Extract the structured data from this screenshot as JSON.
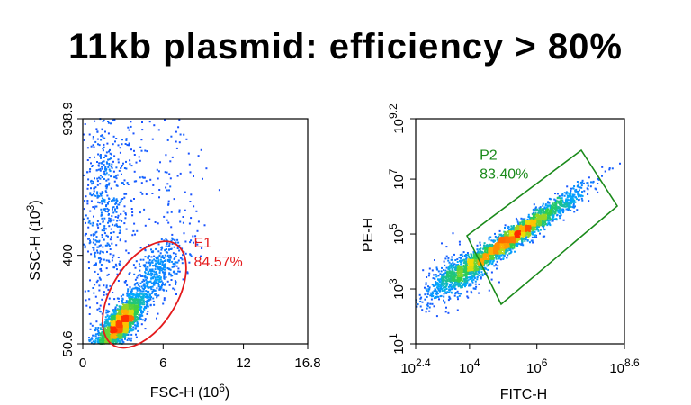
{
  "title": "11kb plasmid: efficiency > 80%",
  "colors": {
    "gate_left": "#e41a1c",
    "gate_right": "#1a8a1a",
    "density_low": "#1f3cff",
    "density_mid": "#2ecf4a",
    "density_high": "#ff2a00"
  },
  "chart_data": [
    {
      "type": "scatter",
      "subtype": "density",
      "xlabel": "FSC-H (10^6)",
      "xlabel_main": "FSC-H",
      "xlabel_unit_base": "(10",
      "xlabel_unit_exp": "6",
      "xlabel_unit_close": ")",
      "ylabel": "SSC-H (10^3)",
      "ylabel_main": "SSC-H",
      "ylabel_unit_base": "(10",
      "ylabel_unit_exp": "3",
      "ylabel_unit_close": ")",
      "xlim": [
        0,
        16.8
      ],
      "ylim": [
        50.6,
        938.9
      ],
      "x_ticks": [
        {
          "value": 0,
          "label": "0"
        },
        {
          "value": 6,
          "label": "6"
        },
        {
          "value": 12,
          "label": "12"
        },
        {
          "value": 16.8,
          "label": "16.8"
        }
      ],
      "y_ticks": [
        {
          "value": 50.6,
          "label": "50.6"
        },
        {
          "value": 400,
          "label": "400"
        },
        {
          "value": 938.9,
          "label": "938.9"
        }
      ],
      "gate": {
        "shape": "ellipse",
        "name": "E1",
        "percent": "84.57%",
        "center": [
          4.6,
          245
        ],
        "label_position": [
          8.3,
          430
        ]
      },
      "clusters": [
        {
          "name": "main",
          "cx": 2.8,
          "cy": 130,
          "sx": 0.9,
          "sy": 55,
          "corr": 0.75,
          "weight": 0.62
        },
        {
          "name": "tail",
          "cx": 5.5,
          "cy": 330,
          "sx": 1.3,
          "sy": 80,
          "corr": 0.7,
          "weight": 0.15
        },
        {
          "name": "debris",
          "cx": 1.6,
          "cy": 600,
          "sx": 1.0,
          "sy": 220,
          "corr": 0.1,
          "weight": 0.18
        },
        {
          "name": "scatter",
          "cx": 5.0,
          "cy": 700,
          "sx": 2.5,
          "sy": 160,
          "corr": 0.0,
          "weight": 0.05
        }
      ]
    },
    {
      "type": "scatter",
      "subtype": "density",
      "xscale": "log",
      "yscale": "log",
      "xlabel": "FITC-H",
      "ylabel": "PE-H",
      "xlim_log10": [
        2.4,
        8.6
      ],
      "ylim_log10": [
        1,
        9.2
      ],
      "x_ticks": [
        {
          "exp": "2.4",
          "value": 2.4
        },
        {
          "exp": "4",
          "value": 4
        },
        {
          "exp": "6",
          "value": 6
        },
        {
          "exp": "8.6",
          "value": 8.6
        }
      ],
      "y_ticks": [
        {
          "exp": "1",
          "value": 1
        },
        {
          "exp": "3",
          "value": 3
        },
        {
          "exp": "5",
          "value": 5
        },
        {
          "exp": "7",
          "value": 7
        },
        {
          "exp": "9.2",
          "value": 9.2
        }
      ],
      "tick_base": "10",
      "gate": {
        "shape": "rotated-rectangle",
        "name": "P2",
        "percent": "83.40%",
        "label_position": [
          4.3,
          7.7
        ]
      },
      "clusters": [
        {
          "name": "diagonal",
          "cx": 5.2,
          "cy": 4.8,
          "sx": 1.0,
          "sy": 0.85,
          "corr": 0.97,
          "weight": 0.85
        },
        {
          "name": "lowspread",
          "cx": 3.7,
          "cy": 3.5,
          "sx": 0.45,
          "sy": 0.5,
          "corr": 0.5,
          "weight": 0.15
        }
      ]
    }
  ]
}
